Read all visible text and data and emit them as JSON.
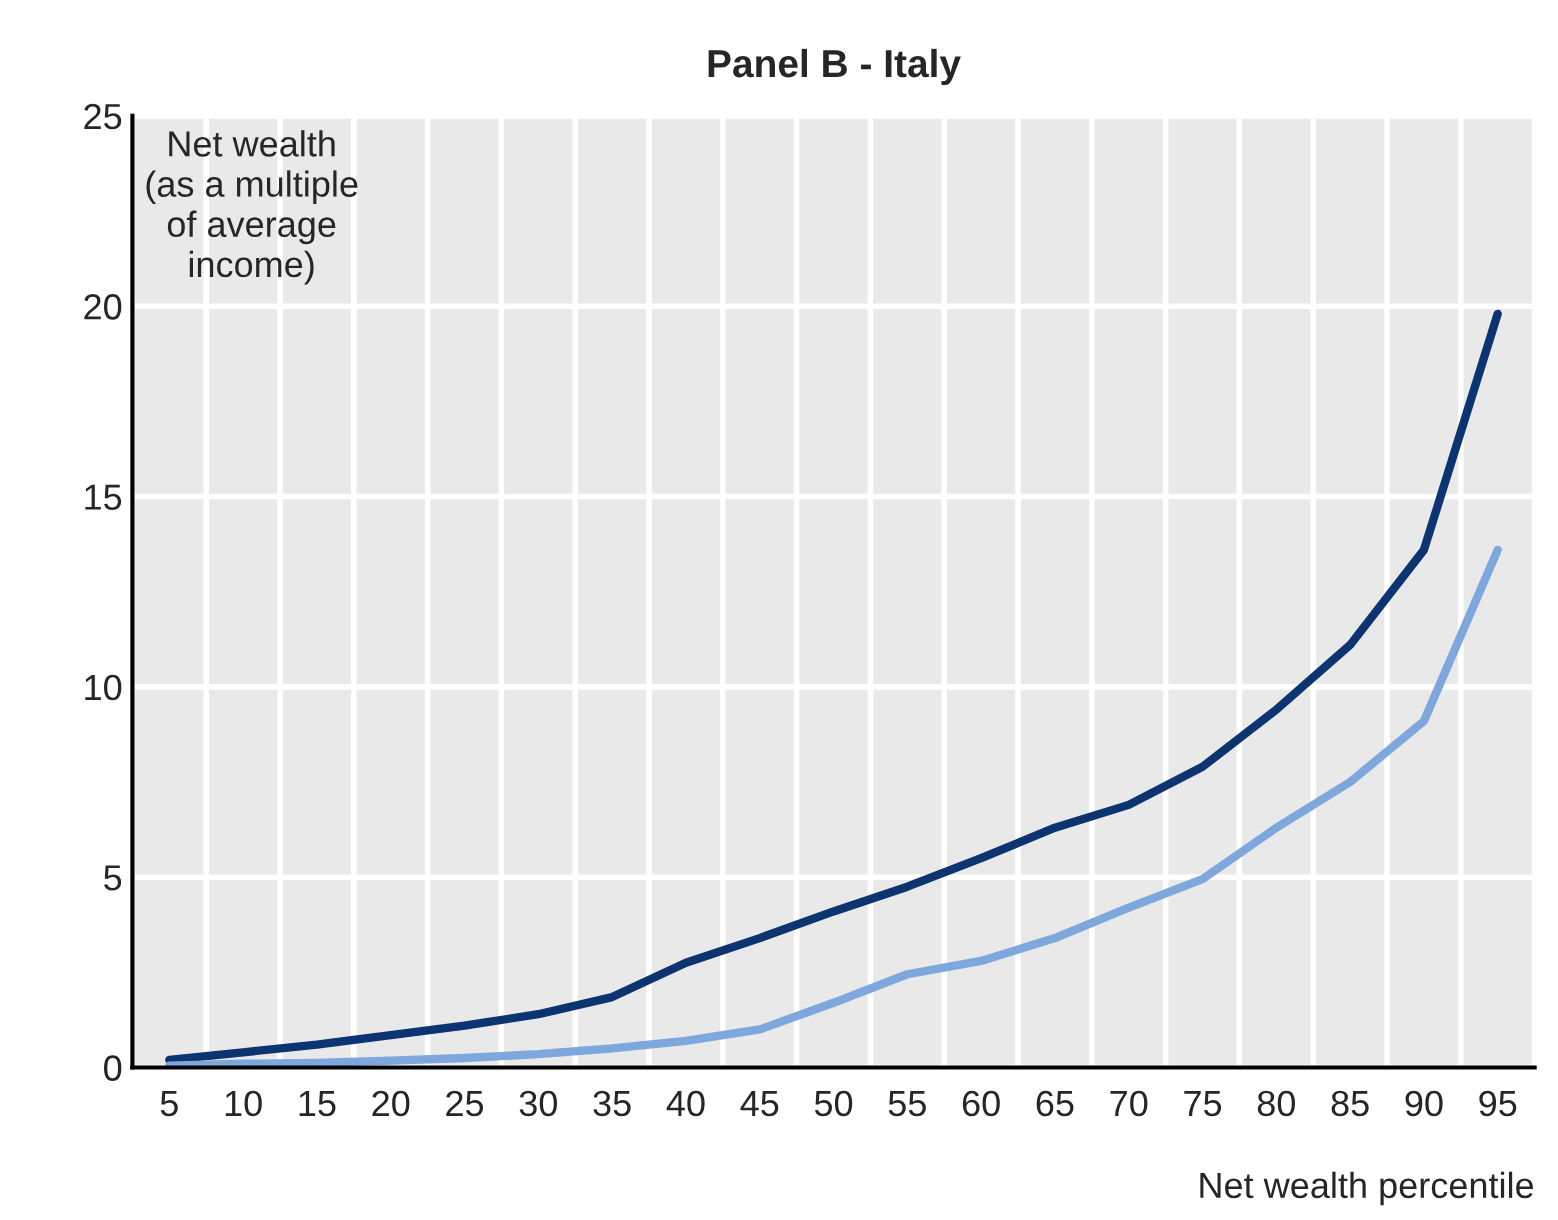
{
  "chart_data": {
    "type": "line",
    "title": "Panel B - Italy",
    "ylabel": "Net wealth\n(as a multiple\nof average\nincome)",
    "xlabel": "Net wealth percentile",
    "categories": [
      "5",
      "10",
      "15",
      "20",
      "25",
      "30",
      "35",
      "40",
      "45",
      "50",
      "55",
      "60",
      "65",
      "70",
      "75",
      "80",
      "85",
      "90",
      "95"
    ],
    "series": [
      {
        "color": "#0b3470",
        "values": [
          0.2,
          0.4,
          0.6,
          0.85,
          1.1,
          1.4,
          1.85,
          2.75,
          3.4,
          4.1,
          4.75,
          5.5,
          6.3,
          6.9,
          7.9,
          9.4,
          11.1,
          13.6,
          19.8
        ]
      },
      {
        "color": "#7ea7de",
        "values": [
          0.05,
          0.1,
          0.12,
          0.18,
          0.25,
          0.35,
          0.5,
          0.7,
          1.0,
          1.7,
          2.45,
          2.8,
          3.4,
          4.2,
          4.95,
          6.3,
          7.5,
          9.1,
          13.6
        ]
      }
    ],
    "ylim": [
      0,
      25
    ],
    "yticks": [
      0,
      5,
      10,
      15,
      20,
      25
    ],
    "grid": true,
    "legend": false,
    "marker": "none",
    "line_style": "solid"
  }
}
